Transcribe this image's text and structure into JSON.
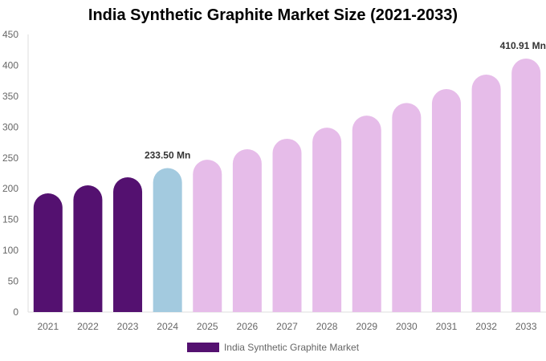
{
  "chart_data": {
    "type": "bar",
    "title": "India Synthetic Graphite Market Size (2021-2033)",
    "categories": [
      "2021",
      "2022",
      "2023",
      "2024",
      "2025",
      "2026",
      "2027",
      "2028",
      "2029",
      "2030",
      "2031",
      "2032",
      "2033"
    ],
    "series": [
      {
        "name": "India Synthetic Graphite Market",
        "values": [
          192.5,
          205.5,
          218.5,
          233.5,
          247,
          264,
          281,
          299,
          318.5,
          339,
          361.5,
          385,
          410.91
        ]
      }
    ],
    "data_labels": [
      {
        "index": 3,
        "text": "233.50 Mn"
      },
      {
        "index": 12,
        "text": "410.91 Mn"
      }
    ],
    "ylim": [
      0,
      450
    ],
    "yticks": [
      0,
      50,
      100,
      150,
      200,
      250,
      300,
      350,
      400,
      450
    ],
    "grid": false,
    "legend_position": "bottom",
    "colors": {
      "historical": "#541170",
      "current": "#a3cadf",
      "forecast": "#e6bce9"
    }
  }
}
